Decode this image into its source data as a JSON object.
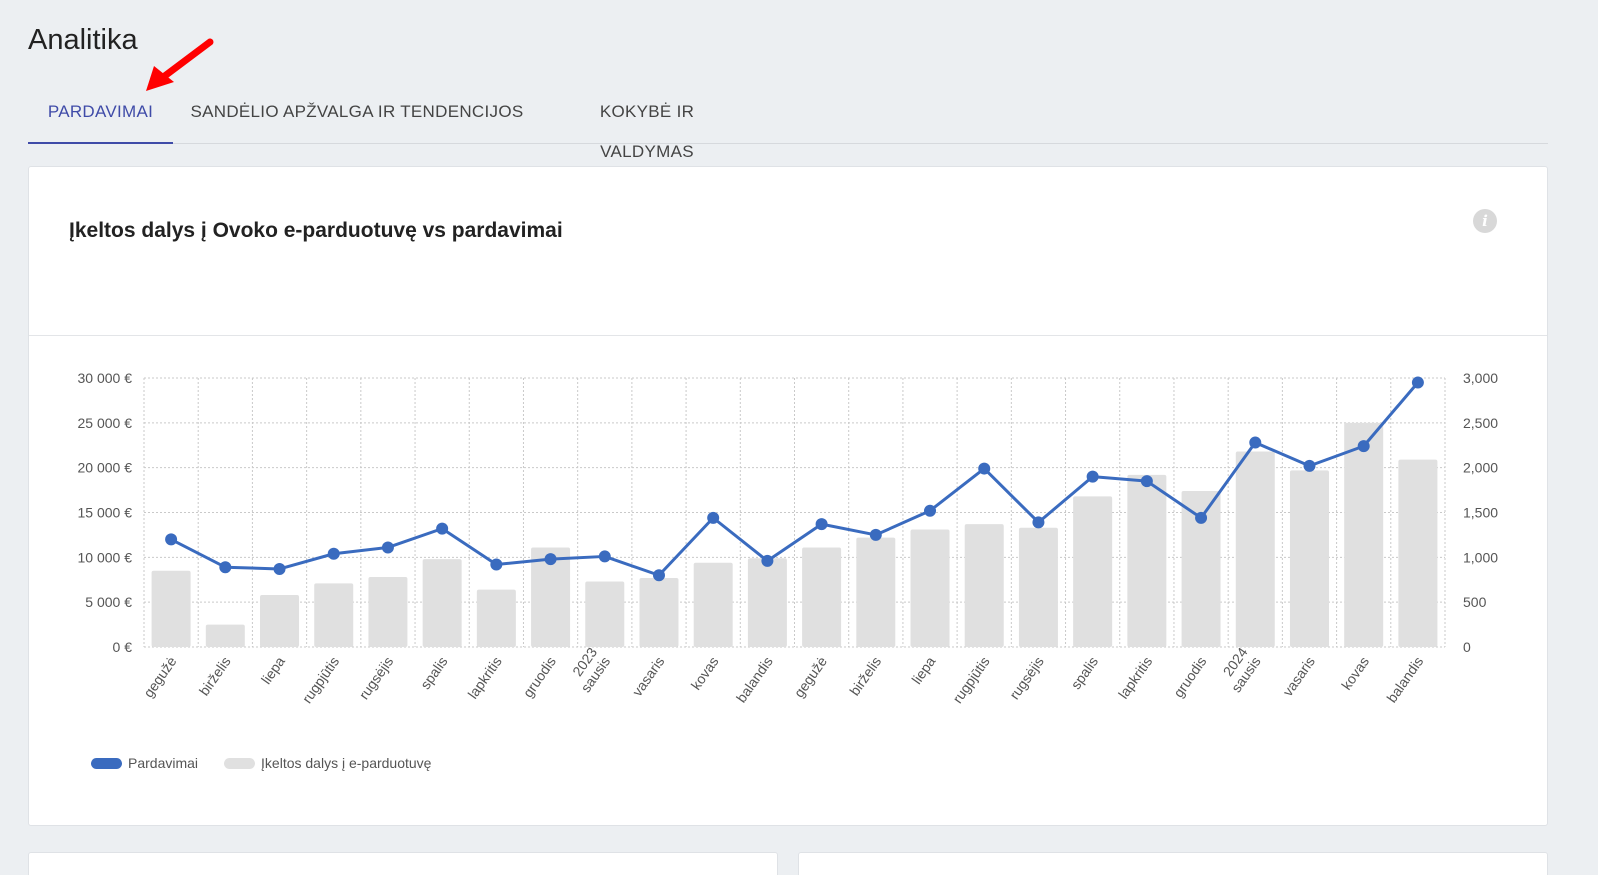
{
  "page": {
    "title": "Analitika"
  },
  "tabs": [
    {
      "label": "PARDAVIMAI",
      "active": true
    },
    {
      "label": "SANDĖLIO APŽVALGA IR TENDENCIJOS",
      "active": false
    },
    {
      "label": "KOKYBĖ IR VALDYMAS",
      "active": false
    }
  ],
  "card": {
    "title": "Įkeltos dalys į Ovoko e-parduotuvę vs pardavimai",
    "info_icon": "info-icon"
  },
  "colors": {
    "accent": "#3f4ba8",
    "line": "#3a6bbf",
    "bar": "#e0e0e0",
    "arrow": "#ff0000"
  },
  "chart_data": {
    "type": "bar",
    "categories": [
      [
        "gegužė"
      ],
      [
        "birželis"
      ],
      [
        "liepa"
      ],
      [
        "rugpjūtis"
      ],
      [
        "rugsėjis"
      ],
      [
        "spalis"
      ],
      [
        "lapkritis"
      ],
      [
        "gruodis"
      ],
      [
        "2023",
        "sausis"
      ],
      [
        "vasaris"
      ],
      [
        "kovas"
      ],
      [
        "balandis"
      ],
      [
        "gegužė"
      ],
      [
        "birželis"
      ],
      [
        "liepa"
      ],
      [
        "rugpjūtis"
      ],
      [
        "rugsėjis"
      ],
      [
        "spalis"
      ],
      [
        "lapkritis"
      ],
      [
        "gruodis"
      ],
      [
        "2024",
        "sausis"
      ],
      [
        "vasaris"
      ],
      [
        "kovas"
      ],
      [
        "balandis"
      ]
    ],
    "series": [
      {
        "name": "Pardavimai",
        "type": "line",
        "axis": "left",
        "values": [
          12000,
          8900,
          8700,
          10400,
          11100,
          13200,
          9200,
          9800,
          10100,
          8000,
          14400,
          9600,
          13700,
          12500,
          15200,
          19900,
          13900,
          19000,
          18500,
          14400,
          22800,
          20200,
          22400,
          29500
        ]
      },
      {
        "name": "Įkeltos dalys į e-parduotuvę",
        "type": "bar",
        "axis": "right",
        "values": [
          850,
          250,
          580,
          710,
          780,
          980,
          640,
          1110,
          730,
          770,
          940,
          990,
          1110,
          1220,
          1310,
          1370,
          1330,
          1680,
          1920,
          1740,
          2180,
          1970,
          2500,
          2090
        ]
      }
    ],
    "y_left": {
      "min": 0,
      "max": 30000,
      "ticks": [
        "0 €",
        "5 000 €",
        "10 000 €",
        "15 000 €",
        "20 000 €",
        "25 000 €",
        "30 000 €"
      ]
    },
    "y_right": {
      "min": 0,
      "max": 3000,
      "ticks": [
        "0",
        "500",
        "1,000",
        "1,500",
        "2,000",
        "2,500",
        "3,000"
      ]
    },
    "grid": true,
    "legend_position": "bottom-left"
  }
}
